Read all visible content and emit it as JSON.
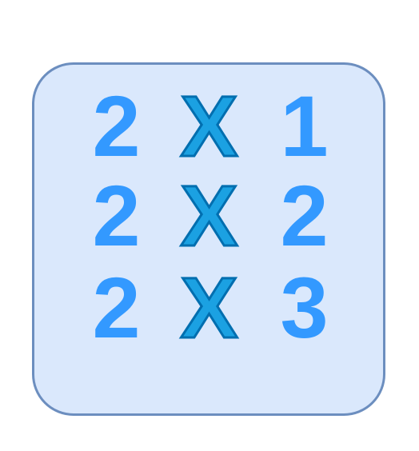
{
  "card": {
    "rows": [
      {
        "left": "2",
        "op": "X",
        "right": "1"
      },
      {
        "left": "2",
        "op": "X",
        "right": "2"
      },
      {
        "left": "2",
        "op": "X",
        "right": "3"
      }
    ]
  },
  "colors": {
    "card_fill": "#dae8fc",
    "card_border": "#6c8ebf",
    "digit": "#3399ff",
    "times_fill": "#1ba1e2",
    "times_outline": "#006eaf"
  }
}
